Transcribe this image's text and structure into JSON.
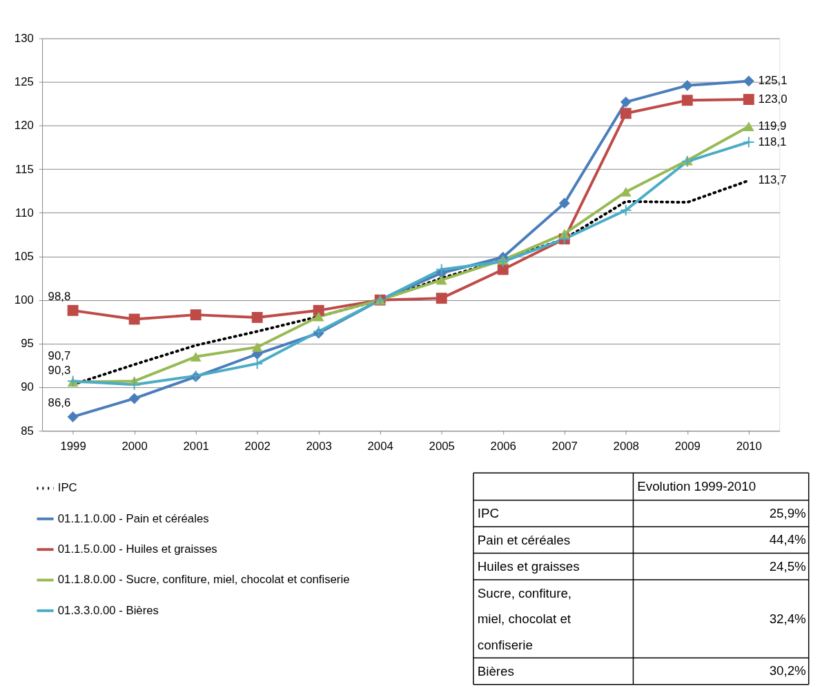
{
  "chart_data": {
    "type": "line",
    "categories": [
      "1999",
      "2000",
      "2001",
      "2002",
      "2003",
      "2004",
      "2005",
      "2006",
      "2007",
      "2008",
      "2009",
      "2010"
    ],
    "ylim": [
      85,
      130
    ],
    "yticks": [
      85,
      90,
      95,
      100,
      105,
      110,
      115,
      120,
      125,
      130
    ],
    "grid": "y",
    "legend": "bottom left",
    "series": [
      {
        "name": "IPC",
        "color": "#000000",
        "line_style": "dotted",
        "marker": "none",
        "values": [
          90.3,
          92.6,
          94.8,
          96.4,
          98.1,
          100,
          102.5,
          104.6,
          107.0,
          111.3,
          111.2,
          113.7
        ],
        "value_labels": [
          "90,3",
          null,
          null,
          null,
          null,
          null,
          null,
          null,
          null,
          null,
          null,
          "113,7"
        ]
      },
      {
        "name": "01.1.1.0.00 - Pain et céréales",
        "color": "#4a7ebb",
        "line_style": "solid",
        "marker": "diamond",
        "values": [
          86.6,
          88.7,
          91.2,
          93.8,
          96.2,
          100,
          103.1,
          104.9,
          111.1,
          122.7,
          124.6,
          125.1
        ],
        "value_labels": [
          "86,6",
          null,
          null,
          null,
          null,
          null,
          null,
          null,
          null,
          null,
          null,
          "125,1"
        ]
      },
      {
        "name": "01.1.5.0.00 - Huiles et graisses",
        "color": "#be4b48",
        "line_style": "solid",
        "marker": "square",
        "values": [
          98.8,
          97.8,
          98.3,
          98.0,
          98.8,
          100,
          100.2,
          103.5,
          107.0,
          121.4,
          122.9,
          123.0
        ],
        "value_labels": [
          "98,8",
          null,
          null,
          null,
          null,
          null,
          null,
          null,
          null,
          null,
          null,
          "123,0"
        ]
      },
      {
        "name": "01.1.8.0.00 - Sucre, confiture, miel, chocolat et confiserie",
        "color": "#98b954",
        "line_style": "solid",
        "marker": "triangle",
        "values": [
          90.6,
          90.7,
          93.5,
          94.6,
          98.1,
          100,
          102.3,
          104.6,
          107.6,
          112.4,
          116.0,
          119.9
        ],
        "value_labels": [
          null,
          null,
          null,
          null,
          null,
          null,
          null,
          null,
          null,
          null,
          null,
          "119,9"
        ]
      },
      {
        "name": "01.3.3.0.00 - Bières",
        "color": "#4bacc6",
        "line_style": "solid",
        "marker": "cross",
        "values": [
          90.7,
          90.3,
          91.3,
          92.7,
          96.4,
          100,
          103.5,
          104.4,
          107.0,
          110.3,
          115.9,
          118.1
        ],
        "value_labels": [
          "90,7",
          null,
          null,
          null,
          null,
          null,
          null,
          null,
          null,
          null,
          null,
          "118,1"
        ]
      }
    ],
    "annotations": [
      "Evolution 1999-2010",
      "IPC",
      "25,9%",
      "Pain et céréales",
      "44,4%",
      "Huiles et graisses",
      "24,5%",
      "Sucre, confiture, miel, chocolat et confiserie",
      "32,4%",
      "Bières",
      "30,2%"
    ]
  }
}
